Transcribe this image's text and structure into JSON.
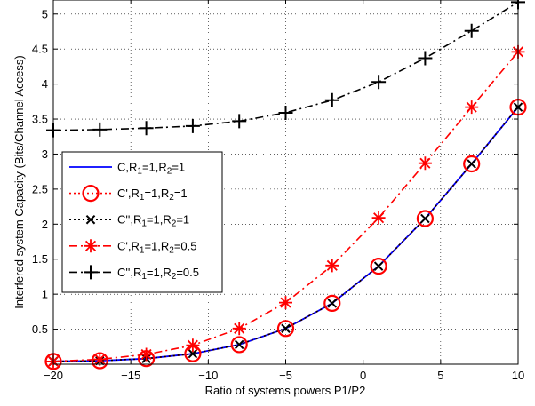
{
  "chart_data": {
    "type": "line",
    "xlabel": "Ratio of systems powers P1/P2",
    "ylabel": "Interfered system Capacity (Bits/Channel Access)",
    "xlim": [
      -20,
      10
    ],
    "ylim": [
      0,
      5.2
    ],
    "xticks": [
      -20,
      -15,
      -10,
      -5,
      0,
      5,
      10
    ],
    "yticks": [
      0.5,
      1,
      1.5,
      2,
      2.5,
      3,
      3.5,
      4,
      4.5,
      5
    ],
    "xtick_labels": [
      "−20",
      "−15",
      "−10",
      "−5",
      "0",
      "5",
      "10"
    ],
    "ytick_labels": [
      "0.5",
      "1",
      "1.5",
      "2",
      "2.5",
      "3",
      "3.5",
      "4",
      "4.5",
      "5"
    ],
    "grid": true,
    "legend_position": "center-left",
    "x": [
      -20,
      -17,
      -14,
      -11,
      -8,
      -5,
      -2,
      1,
      4,
      7,
      10
    ],
    "series": [
      {
        "name": "C,R1=1,R2=1",
        "legend": {
          "base": "C,R",
          "s1": "1",
          "mid": "=1,R",
          "s2": "2",
          "end": "=1"
        },
        "color": "#0000ff",
        "line": "solid",
        "marker": "none",
        "values": [
          0.04,
          0.05,
          0.08,
          0.15,
          0.28,
          0.51,
          0.87,
          1.4,
          2.08,
          2.86,
          3.67
        ]
      },
      {
        "name": "C',R1=1,R2=1",
        "legend": {
          "base": "C',R",
          "s1": "1",
          "mid": "=1,R",
          "s2": "2",
          "end": "=1"
        },
        "color": "#ff0000",
        "line": "dotted",
        "marker": "circle",
        "values": [
          0.04,
          0.05,
          0.08,
          0.15,
          0.28,
          0.51,
          0.87,
          1.4,
          2.08,
          2.86,
          3.67
        ]
      },
      {
        "name": "C'',R1=1,R2=1",
        "legend": {
          "base": "C'',R",
          "s1": "1",
          "mid": "=1,R",
          "s2": "2",
          "end": "=1"
        },
        "color": "#000000",
        "line": "dotted",
        "marker": "x",
        "values": [
          0.04,
          0.05,
          0.08,
          0.15,
          0.28,
          0.51,
          0.87,
          1.4,
          2.08,
          2.86,
          3.67
        ]
      },
      {
        "name": "C',R1=1,R2=0.5",
        "legend": {
          "base": "C',R",
          "s1": "1",
          "mid": "=1,R",
          "s2": "2",
          "end": "=0.5"
        },
        "color": "#ff0000",
        "line": "dashdot",
        "marker": "star",
        "values": [
          0.04,
          0.07,
          0.14,
          0.27,
          0.51,
          0.88,
          1.41,
          2.09,
          2.87,
          3.67,
          4.46
        ]
      },
      {
        "name": "C'',R1=1,R2=0.5",
        "legend": {
          "base": "C'',R",
          "s1": "1",
          "mid": "=1,R",
          "s2": "2",
          "end": "=0.5"
        },
        "color": "#000000",
        "line": "dashdot",
        "marker": "plus",
        "values": [
          3.34,
          3.35,
          3.37,
          3.4,
          3.47,
          3.59,
          3.77,
          4.03,
          4.37,
          4.76,
          5.17
        ]
      }
    ]
  }
}
